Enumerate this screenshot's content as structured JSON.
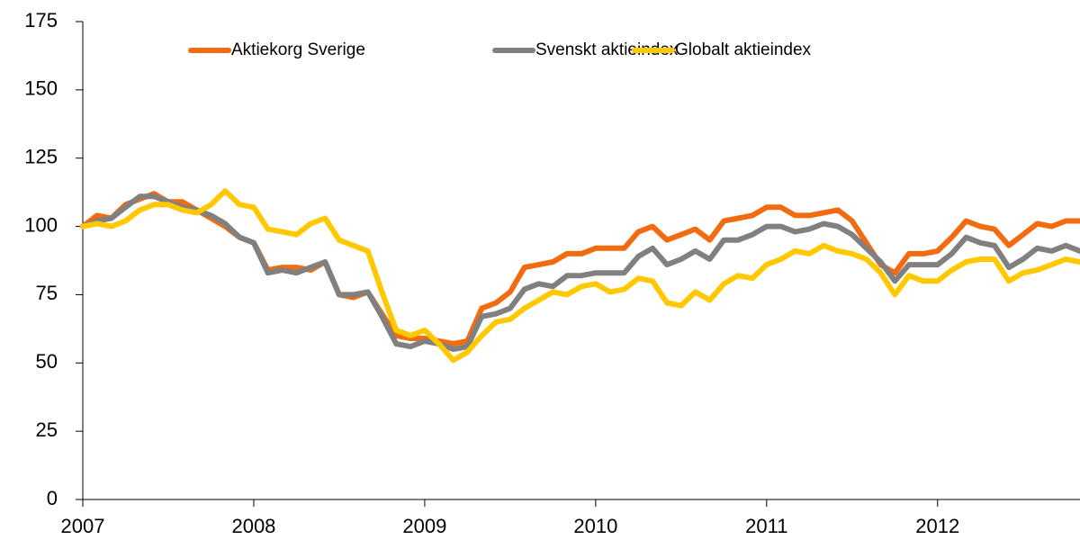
{
  "chart_data": {
    "type": "line",
    "x": [
      2007,
      2007.083,
      2007.167,
      2007.25,
      2007.333,
      2007.417,
      2007.5,
      2007.583,
      2007.667,
      2007.75,
      2007.833,
      2007.917,
      2008,
      2008.083,
      2008.167,
      2008.25,
      2008.333,
      2008.417,
      2008.5,
      2008.583,
      2008.667,
      2008.75,
      2008.833,
      2008.917,
      2009,
      2009.083,
      2009.167,
      2009.25,
      2009.333,
      2009.417,
      2009.5,
      2009.583,
      2009.667,
      2009.75,
      2009.833,
      2009.917,
      2010,
      2010.083,
      2010.167,
      2010.25,
      2010.333,
      2010.417,
      2010.5,
      2010.583,
      2010.667,
      2010.75,
      2010.833,
      2010.917,
      2011,
      2011.083,
      2011.167,
      2011.25,
      2011.333,
      2011.417,
      2011.5,
      2011.583,
      2011.667,
      2011.75,
      2011.833,
      2011.917,
      2012,
      2012.083,
      2012.167,
      2012.25,
      2012.333,
      2012.417,
      2012.5,
      2012.583,
      2012.667,
      2012.75,
      2012.833
    ],
    "series": [
      {
        "name": "Aktiekorg Sverige",
        "color": "#f26b10",
        "values": [
          100,
          104,
          103,
          108,
          110,
          112,
          109,
          109,
          106,
          103,
          100,
          96,
          94,
          84,
          85,
          85,
          84,
          87,
          75,
          74,
          76,
          68,
          60,
          59,
          59,
          58,
          57,
          58,
          70,
          72,
          76,
          85,
          86,
          87,
          90,
          90,
          92,
          92,
          92,
          98,
          100,
          95,
          97,
          99,
          95,
          102,
          103,
          104,
          107,
          107,
          104,
          104,
          105,
          106,
          102,
          94,
          86,
          83,
          90,
          90,
          91,
          96,
          102,
          100,
          99,
          93,
          97,
          101,
          100,
          102,
          102
        ]
      },
      {
        "name": "Svenskt aktieindex",
        "color": "#808080",
        "values": [
          100,
          102,
          103,
          107,
          111,
          111,
          109,
          107,
          106,
          104,
          101,
          96,
          94,
          83,
          84,
          83,
          85,
          87,
          75,
          75,
          76,
          67,
          57,
          56,
          58,
          57,
          55,
          56,
          67,
          68,
          70,
          77,
          79,
          78,
          82,
          82,
          83,
          83,
          83,
          89,
          92,
          86,
          88,
          91,
          88,
          95,
          95,
          97,
          100,
          100,
          98,
          99,
          101,
          100,
          97,
          92,
          87,
          80,
          86,
          86,
          86,
          90,
          96,
          94,
          93,
          85,
          88,
          92,
          91,
          93,
          91
        ]
      },
      {
        "name": "Globalt aktieindex",
        "color": "#ffc800",
        "values": [
          100,
          101,
          100,
          102,
          106,
          108,
          108,
          106,
          105,
          108,
          113,
          108,
          107,
          99,
          98,
          97,
          101,
          103,
          95,
          93,
          91,
          76,
          62,
          60,
          62,
          57,
          51,
          54,
          60,
          65,
          66,
          70,
          73,
          76,
          75,
          78,
          79,
          76,
          77,
          81,
          80,
          72,
          71,
          76,
          73,
          79,
          82,
          81,
          86,
          88,
          91,
          90,
          93,
          91,
          90,
          88,
          83,
          75,
          82,
          80,
          80,
          84,
          87,
          88,
          88,
          80,
          83,
          84,
          86,
          88,
          87
        ]
      }
    ],
    "xlim": [
      2007,
      2012.833
    ],
    "xticks": [
      2007,
      2008,
      2009,
      2010,
      2011,
      2012
    ],
    "ylim": [
      0,
      175
    ],
    "yticks": [
      0,
      25,
      50,
      75,
      100,
      125,
      150,
      175
    ],
    "legend": "top"
  }
}
